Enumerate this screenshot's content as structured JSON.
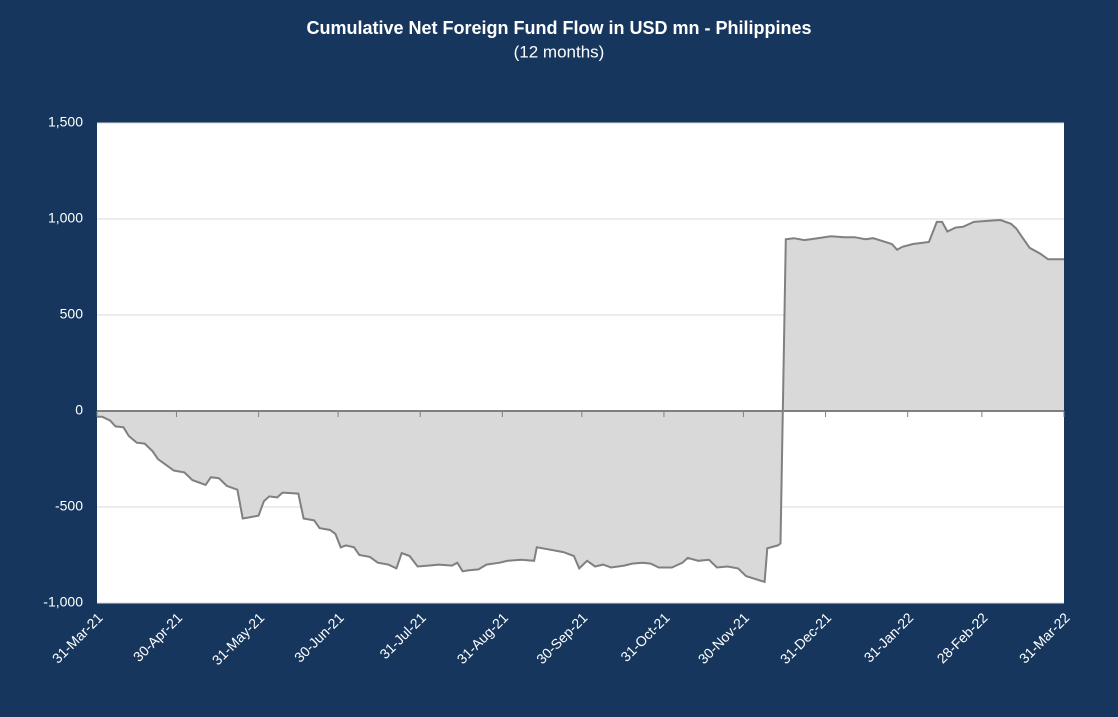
{
  "chart_data": {
    "type": "area",
    "title": "Cumulative Net Foreign Fund Flow in USD mn -  Philippines",
    "subtitle": "(12 months)",
    "x": [
      "2021-03-31",
      "2021-04-02",
      "2021-04-05",
      "2021-04-07",
      "2021-04-10",
      "2021-04-12",
      "2021-04-15",
      "2021-04-18",
      "2021-04-21",
      "2021-04-23",
      "2021-04-26",
      "2021-04-29",
      "2021-05-03",
      "2021-05-06",
      "2021-05-08",
      "2021-05-11",
      "2021-05-13",
      "2021-05-16",
      "2021-05-19",
      "2021-05-23",
      "2021-05-25",
      "2021-05-27",
      "2021-05-31",
      "2021-06-02",
      "2021-06-04",
      "2021-06-07",
      "2021-06-09",
      "2021-06-15",
      "2021-06-17",
      "2021-06-21",
      "2021-06-23",
      "2021-06-27",
      "2021-06-29",
      "2021-07-01",
      "2021-07-03",
      "2021-07-06",
      "2021-07-08",
      "2021-07-12",
      "2021-07-15",
      "2021-07-19",
      "2021-07-22",
      "2021-07-24",
      "2021-07-27",
      "2021-07-30",
      "2021-08-03",
      "2021-08-07",
      "2021-08-12",
      "2021-08-14",
      "2021-08-16",
      "2021-08-18",
      "2021-08-22",
      "2021-08-25",
      "2021-08-30",
      "2021-09-02",
      "2021-09-07",
      "2021-09-12",
      "2021-09-13",
      "2021-09-17",
      "2021-09-23",
      "2021-09-27",
      "2021-09-29",
      "2021-10-02",
      "2021-10-05",
      "2021-10-08",
      "2021-10-11",
      "2021-10-16",
      "2021-10-19",
      "2021-10-23",
      "2021-10-26",
      "2021-10-29",
      "2021-11-03",
      "2021-11-07",
      "2021-11-09",
      "2021-11-13",
      "2021-11-17",
      "2021-11-20",
      "2021-11-24",
      "2021-11-28",
      "2021-12-01",
      "2021-12-08",
      "2021-12-09",
      "2021-12-13",
      "2021-12-14",
      "2021-12-16",
      "2021-12-19",
      "2021-12-23",
      "2021-12-28",
      "2022-01-02",
      "2022-01-07",
      "2022-01-11",
      "2022-01-15",
      "2022-01-18",
      "2022-01-25",
      "2022-01-27",
      "2022-01-29",
      "2022-02-02",
      "2022-02-08",
      "2022-02-11",
      "2022-02-13",
      "2022-02-15",
      "2022-02-18",
      "2022-02-21",
      "2022-02-25",
      "2022-03-02",
      "2022-03-07",
      "2022-03-11",
      "2022-03-13",
      "2022-03-15",
      "2022-03-18",
      "2022-03-22",
      "2022-03-25",
      "2022-03-29",
      "2022-03-31"
    ],
    "series": [
      {
        "color": "#808080",
        "fill": "#d9d9d9",
        "values": [
          -30,
          -30,
          -50,
          -80,
          -85,
          -130,
          -165,
          -170,
          -210,
          -250,
          -280,
          -310,
          -320,
          -360,
          -370,
          -385,
          -345,
          -350,
          -390,
          -410,
          -560,
          -555,
          -545,
          -470,
          -445,
          -450,
          -425,
          -430,
          -560,
          -570,
          -610,
          -620,
          -640,
          -710,
          -700,
          -710,
          -750,
          -760,
          -790,
          -800,
          -820,
          -740,
          -755,
          -810,
          -805,
          -800,
          -805,
          -790,
          -835,
          -830,
          -825,
          -800,
          -790,
          -780,
          -775,
          -780,
          -710,
          -720,
          -735,
          -755,
          -820,
          -780,
          -810,
          -800,
          -815,
          -805,
          -795,
          -790,
          -795,
          -815,
          -815,
          -790,
          -765,
          -780,
          -775,
          -815,
          -810,
          -820,
          -860,
          -890,
          -715,
          -700,
          -690,
          895,
          900,
          890,
          900,
          910,
          905,
          905,
          895,
          900,
          870,
          840,
          855,
          870,
          880,
          985,
          985,
          935,
          955,
          960,
          985,
          990,
          995,
          975,
          950,
          910,
          850,
          820,
          790,
          790,
          790
        ]
      }
    ],
    "xticks": [
      {
        "value": "2021-03-31",
        "label": "31-Mar-21"
      },
      {
        "value": "2021-04-30",
        "label": "30-Apr-21"
      },
      {
        "value": "2021-05-31",
        "label": "31-May-21"
      },
      {
        "value": "2021-06-30",
        "label": "30-Jun-21"
      },
      {
        "value": "2021-07-31",
        "label": "31-Jul-21"
      },
      {
        "value": "2021-08-31",
        "label": "31-Aug-21"
      },
      {
        "value": "2021-09-30",
        "label": "30-Sep-21"
      },
      {
        "value": "2021-10-31",
        "label": "31-Oct-21"
      },
      {
        "value": "2021-11-30",
        "label": "30-Nov-21"
      },
      {
        "value": "2021-12-31",
        "label": "31-Dec-21"
      },
      {
        "value": "2022-01-31",
        "label": "31-Jan-22"
      },
      {
        "value": "2022-02-28",
        "label": "28-Feb-22"
      },
      {
        "value": "2022-03-31",
        "label": "31-Mar-22"
      }
    ],
    "xlim": [
      "2021-03-31",
      "2022-03-31"
    ],
    "ylim": [
      -1000,
      1500
    ],
    "yticks": [
      {
        "value": -1000,
        "label": "-1,000"
      },
      -500,
      0,
      500,
      {
        "value": 1000,
        "label": "1,000"
      },
      {
        "value": 1500,
        "label": "1,500"
      }
    ],
    "grid": true
  }
}
